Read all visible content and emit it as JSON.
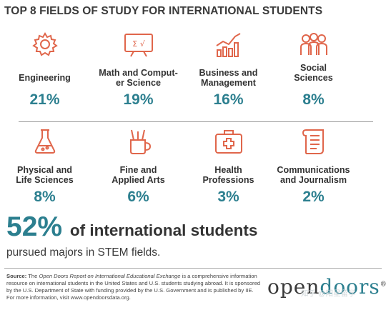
{
  "title": "TOP 8 FIELDS OF STUDY FOR INTERNATIONAL STUDENTS",
  "chart_data": {
    "type": "table",
    "title": "TOP 8 FIELDS OF STUDY FOR INTERNATIONAL STUDENTS",
    "categories": [
      "Engineering",
      "Math and Computer Science",
      "Business and Management",
      "Social Sciences",
      "Physical and Life Sciences",
      "Fine and Applied Arts",
      "Health Professions",
      "Communications and Journalism"
    ],
    "values": [
      21,
      19,
      16,
      8,
      8,
      6,
      3,
      2
    ],
    "unit": "%"
  },
  "fields": [
    {
      "label_html_1": "Engineering",
      "label_html_2": "",
      "pct": "21%",
      "icon": "gear-icon"
    },
    {
      "label_html_1": "Math and Comput-",
      "label_html_2": "er Science",
      "pct": "19%",
      "icon": "whiteboard-math-icon"
    },
    {
      "label_html_1": "Business and",
      "label_html_2": "Management",
      "pct": "16%",
      "icon": "growth-chart-icon"
    },
    {
      "label_html_1": "Social",
      "label_html_2": "Sciences",
      "pct": "8%",
      "icon": "people-group-icon"
    },
    {
      "label_html_1": "Physical and",
      "label_html_2": "Life Sciences",
      "pct": "8%",
      "icon": "flask-icon"
    },
    {
      "label_html_1": "Fine and",
      "label_html_2": "Applied Arts",
      "pct": "6%",
      "icon": "paintbrush-cup-icon"
    },
    {
      "label_html_1": "Health",
      "label_html_2": "Professions",
      "pct": "3%",
      "icon": "medical-kit-icon"
    },
    {
      "label_html_1": "Communications",
      "label_html_2": "and Journalism",
      "pct": "2%",
      "icon": "scroll-document-icon"
    }
  ],
  "stem": {
    "big": "52%",
    "rest": "of international students",
    "sub": "pursued majors in STEM fields."
  },
  "source": {
    "label": "Source:",
    "text_a": "The ",
    "italic": "Open Doors Report on International Educational Exchange",
    "text_b": " is a comprehensive information resource on international students in the United States and U.S. students studying abroad. It is sponsored by the U.S. Department of State with funding provided by the U.S. Government and is published by IIE. For more information, visit www.opendoorsdata.org."
  },
  "logo": {
    "part1": "open",
    "part2": "doors",
    "mark": "®"
  },
  "watermark": "知乎 @阳星留学",
  "colors": {
    "accent": "#2c7f8f",
    "icon": "#e0664b",
    "text": "#333333"
  }
}
